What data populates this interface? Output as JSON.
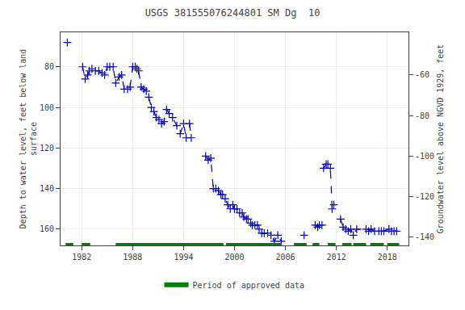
{
  "chart_data": {
    "type": "line",
    "title": "USGS 381555076244801 SM Dg  10",
    "ylabel": "Depth to water level, feet below land\nsurface",
    "y2label": "Groundwater level above NGVD 1929, feet",
    "xlim": [
      1979.5,
      2020.5
    ],
    "xticks": [
      1982,
      1988,
      1994,
      2000,
      2006,
      2012,
      2018
    ],
    "ylim": [
      168,
      63
    ],
    "yticks": [
      80,
      100,
      120,
      140,
      160
    ],
    "y2lim": [
      -144,
      -39
    ],
    "y2ticks": [
      -60,
      -80,
      -100,
      -120,
      -140
    ],
    "grid": true,
    "legend": "bottom",
    "series": [
      {
        "color": "#0000cc",
        "line_style": "dashed",
        "marker": "cross",
        "x": [
          1980.3,
          null,
          1982.1,
          1982.4,
          1982.7,
          1982.9,
          1983.2,
          1983.6,
          1984.0,
          1984.4,
          1984.7,
          1985.0,
          1985.3,
          1985.7,
          1986.0,
          1986.4,
          1986.7,
          1987.0,
          1987.4,
          1987.7,
          1988.0,
          1988.3,
          1988.5,
          1988.7,
          1989.0,
          1989.3,
          1989.6,
          1989.9,
          1990.2,
          1990.5,
          1990.8,
          1991.1,
          1991.4,
          1991.7,
          1992.0,
          1992.3,
          1992.7,
          1993.2,
          1993.6,
          1994.0,
          1994.3,
          null,
          1994.7,
          1994.9,
          null,
          1996.6,
          1996.9,
          1997.2,
          1997.5,
          1997.8,
          1998.1,
          1998.4,
          1998.6,
          1998.9,
          1999.2,
          1999.5,
          1999.8,
          2000.0,
          2000.3,
          2000.6,
          2000.9,
          2001.1,
          2001.4,
          2001.6,
          2001.9,
          2002.1,
          2002.4,
          2002.7,
          2002.9,
          2003.2,
          2003.5,
          2003.9,
          2004.3,
          2004.7,
          2005.1,
          2005.5,
          null,
          2008.2,
          null,
          2009.5,
          2009.8,
          2010.0,
          2010.3,
          null,
          2010.5,
          2010.8,
          2011.0,
          2011.3,
          2011.5,
          2011.7,
          null,
          2012.5,
          2012.8,
          2013.1,
          2013.4,
          2013.7,
          2014.0,
          2014.4,
          2015.5,
          2015.8,
          2016.1,
          2016.5,
          2017.0,
          2017.3,
          2017.6,
          2018.2,
          2018.5,
          2018.8,
          2019.1
        ],
        "values": [
          68,
          null,
          80,
          86,
          84,
          82,
          81,
          82,
          82,
          83,
          84,
          80,
          80,
          80,
          88,
          85,
          84,
          91,
          91,
          90,
          80,
          80,
          81,
          82,
          90,
          91,
          92,
          95,
          100,
          102,
          105,
          106,
          108,
          107,
          101,
          103,
          105,
          109,
          113,
          108,
          115,
          null,
          108,
          115,
          null,
          124,
          126,
          125,
          140,
          140,
          141,
          143,
          143,
          145,
          148,
          150,
          148,
          150,
          150,
          152,
          152,
          154,
          155,
          155,
          157,
          158,
          158,
          158,
          160,
          162,
          162,
          162,
          163,
          166,
          163,
          166,
          null,
          163,
          null,
          158,
          159,
          158,
          158,
          null,
          130,
          128,
          128,
          130,
          150,
          148,
          null,
          155,
          159,
          160,
          161,
          160,
          163,
          160,
          160,
          161,
          160,
          161,
          161,
          161,
          161,
          160,
          161,
          161,
          161
        ]
      },
      {
        "name": "Period of approved data",
        "color": "#008000",
        "line_style": "solid",
        "x": [
          1980.1,
          1981.0,
          null,
          1982.0,
          1983.0,
          null,
          1986.0,
          1998.7,
          null,
          1999.0,
          2005.5,
          null,
          2007.0,
          2008.5,
          null,
          2009.2,
          2010.0,
          null,
          2011.0,
          2011.9,
          null,
          2012.7,
          2013.8,
          null,
          2014.0,
          2015.5,
          null,
          2016.0,
          2017.6,
          null,
          2018.0,
          2019.4
        ],
        "values": [
          168,
          168,
          null,
          168,
          168,
          null,
          168,
          168,
          null,
          168,
          168,
          null,
          168,
          168,
          null,
          168,
          168,
          null,
          168,
          168,
          null,
          168,
          168,
          null,
          168,
          168,
          null,
          168,
          168,
          null,
          168,
          168
        ]
      }
    ]
  }
}
